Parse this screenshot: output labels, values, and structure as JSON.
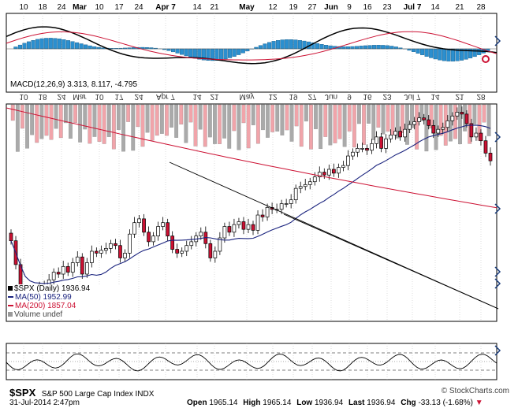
{
  "chart_data": {
    "type": "candlestick",
    "title": "$SPX",
    "subtitle": "S&P 500 Large Cap Index INDX",
    "timestamp": "31-Jul-2014 2:47pm",
    "watermark": "© StockCharts.com",
    "quote": {
      "open_label": "Open",
      "open": "1965.14",
      "high_label": "High",
      "high": "1965.14",
      "low_label": "Low",
      "low": "1936.94",
      "last_label": "Last",
      "last": "1936.94",
      "chg_label": "Chg",
      "chg": "-33.13 (-1.68%)"
    },
    "x_tick_labels": [
      "10",
      "18",
      "24",
      "Mar",
      "10",
      "17",
      "24",
      "Apr 7",
      "14",
      "21",
      "May",
      "12",
      "19",
      "27",
      "Jun",
      "9",
      "16",
      "23",
      "Jul 7",
      "14",
      "21",
      "28"
    ],
    "legend": {
      "price": "$SPX (Daily) 1936.94",
      "ma50": "MA(50) 1952.99",
      "ma200": "MA(200) 1857.04",
      "volume": "Volume undef"
    },
    "macd_label": "MACD(12,26,9) 3.313, 8.117, -4.795",
    "price_series": [
      1853,
      1828,
      1800,
      1781,
      1792,
      1800,
      1806,
      1804,
      1812,
      1820,
      1818,
      1826,
      1820,
      1830,
      1836,
      1818,
      1830,
      1842,
      1840,
      1843,
      1845,
      1850,
      1848,
      1835,
      1840,
      1860,
      1872,
      1876,
      1862,
      1852,
      1858,
      1868,
      1872,
      1858,
      1844,
      1840,
      1842,
      1848,
      1852,
      1858,
      1862,
      1850,
      1835,
      1842,
      1856,
      1868,
      1862,
      1870,
      1873,
      1865,
      1870,
      1864,
      1880,
      1878,
      1888,
      1886,
      1886,
      1892,
      1892,
      1896,
      1908,
      1910,
      1912,
      1915,
      1920,
      1925,
      1922,
      1928,
      1924,
      1930,
      1932,
      1942,
      1946,
      1950,
      1950,
      1948,
      1955,
      1962,
      1950,
      1960,
      1964,
      1968,
      1962,
      1970,
      1975,
      1978,
      1982,
      1980,
      1974,
      1966,
      1970,
      1972,
      1979,
      1984,
      1988,
      1986,
      1976,
      1962,
      1966,
      1958,
      1945,
      1936.94
    ],
    "colors": {
      "ma50": "#1a237e",
      "ma200": "#cc1133",
      "up": "#ffffff",
      "down": "#cc1133",
      "macd_hist": "#2b8fcf",
      "volume_down": "#f1a4aa",
      "volume_up": "#aaaaaa",
      "grid": "#bbbbbb"
    }
  }
}
